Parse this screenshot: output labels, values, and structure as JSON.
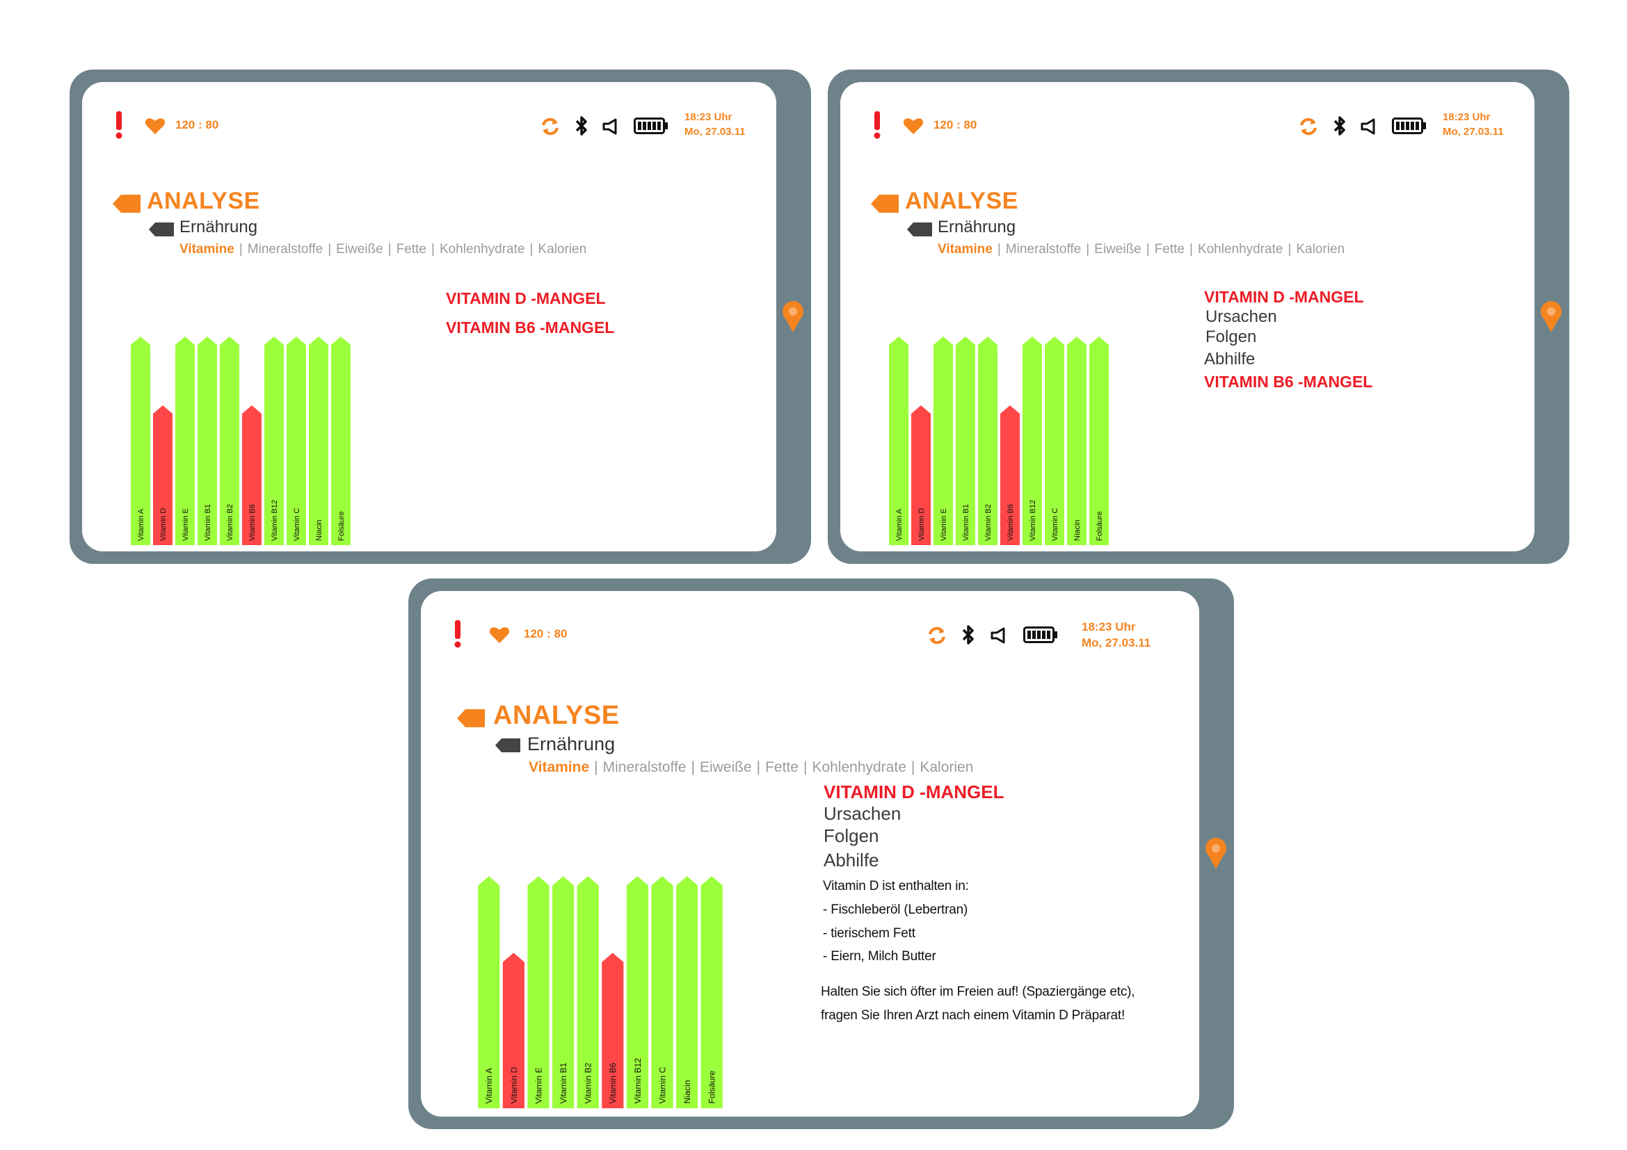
{
  "status": {
    "blood_pressure": "120 : 80",
    "time": "18:23 Uhr",
    "date": "Mo, 27.03.11"
  },
  "header": {
    "title": "ANALYSE",
    "subtitle": "Ernährung",
    "tabs": [
      "Vitamine",
      "Mineralstoffe",
      "Eiweiße",
      "Fette",
      "Kohlenhydrate",
      "Kalorien"
    ],
    "active_tab": "Vitamine"
  },
  "colors": {
    "ok": "#9cff3b",
    "deficit": "#ff4747",
    "accent": "#f5841f",
    "alert": "#ee1c25",
    "frame": "#6e828a"
  },
  "chart_data": {
    "type": "bar",
    "categories": [
      "Vitamin A",
      "Vitamin D",
      "Vitamin E",
      "Vitamin B1",
      "Vitamin B2",
      "Vitamin B6",
      "Vitamin B12",
      "Vitamin C",
      "Niacin",
      "Folsäure"
    ],
    "values": [
      100,
      67,
      100,
      100,
      100,
      67,
      100,
      100,
      100,
      100
    ],
    "status": [
      "ok",
      "deficit",
      "ok",
      "ok",
      "ok",
      "deficit",
      "ok",
      "ok",
      "ok",
      "ok"
    ],
    "ylim": [
      0,
      100
    ]
  },
  "screens": [
    {
      "mangel_d": "VITAMIN D  -MANGEL",
      "mangel_b6": "VITAMIN B6  -MANGEL"
    },
    {
      "mangel_d": "VITAMIN D  -MANGEL",
      "links": [
        "Ursachen",
        "Folgen",
        "Abhilfe"
      ],
      "mangel_b6": "VITAMIN B6  -MANGEL"
    },
    {
      "mangel_d": "VITAMIN D  -MANGEL",
      "links": [
        "Ursachen",
        "Folgen",
        "Abhilfe"
      ],
      "contained_title": "Vitamin D ist enthalten in:",
      "contained": [
        "- Fischleberöl (Lebertran)",
        "- tierischem Fett",
        "- Eiern, Milch Butter"
      ],
      "advice": [
        "Halten Sie sich öfter im Freien auf!  (Spaziergänge etc),",
        "fragen Sie Ihren Arzt nach einem Vitamin D Präparat!"
      ]
    }
  ]
}
